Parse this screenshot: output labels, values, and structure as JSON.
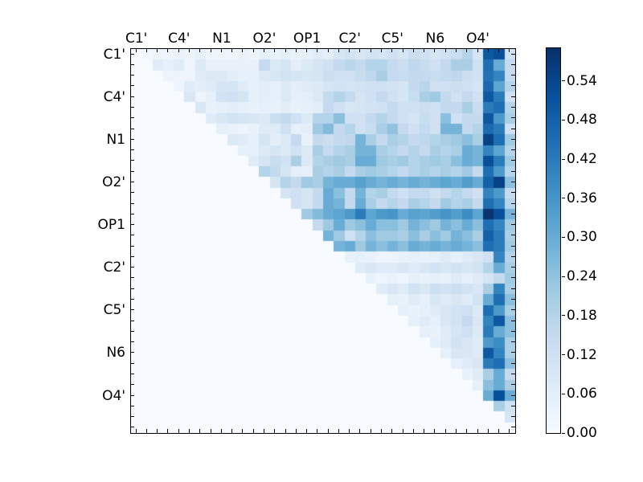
{
  "chart_data": {
    "type": "heatmap",
    "colormap": "Blues",
    "n_rows": 36,
    "n_cols": 36,
    "vmin": 0.0,
    "vmax": 0.59,
    "x_axis": {
      "side": "top",
      "labels": [
        "C1'",
        "C4'",
        "N1",
        "O2'",
        "OP1",
        "C2'",
        "C5'",
        "N6",
        "O4'"
      ],
      "label_cell_indices": [
        0,
        4,
        8,
        12,
        16,
        20,
        24,
        28,
        32
      ]
    },
    "y_axis": {
      "side": "left",
      "labels": [
        "C1'",
        "C4'",
        "N1",
        "O2'",
        "OP1",
        "C2'",
        "C5'",
        "N6",
        "O4'"
      ],
      "label_cell_indices": [
        0,
        4,
        8,
        12,
        16,
        20,
        24,
        28,
        32
      ]
    },
    "colorbar": {
      "side": "right",
      "tick_labels": [
        "0.00",
        "0.06",
        "0.12",
        "0.18",
        "0.24",
        "0.30",
        "0.36",
        "0.42",
        "0.48",
        "0.54"
      ],
      "tick_values": [
        0.0,
        0.06,
        0.12,
        0.18,
        0.24,
        0.3,
        0.36,
        0.42,
        0.48,
        0.54
      ]
    },
    "colormap_stops": [
      [
        0.0,
        "#f7fbff"
      ],
      [
        0.125,
        "#deebf7"
      ],
      [
        0.25,
        "#c6dbef"
      ],
      [
        0.375,
        "#9ecae1"
      ],
      [
        0.5,
        "#6baed6"
      ],
      [
        0.625,
        "#4292c6"
      ],
      [
        0.75,
        "#2171b5"
      ],
      [
        0.875,
        "#08519c"
      ],
      [
        1.0,
        "#08306b"
      ]
    ],
    "values": [
      [
        0,
        0.02,
        0.03,
        0.03,
        0.04,
        0.03,
        0.05,
        0.03,
        0.03,
        0.03,
        0.04,
        0.03,
        0.05,
        0.04,
        0.06,
        0.04,
        0.05,
        0.07,
        0.06,
        0.09,
        0.11,
        0.09,
        0.11,
        0.1,
        0.12,
        0.1,
        0.13,
        0.12,
        0.1,
        0.12,
        0.14,
        0.18,
        0.1,
        0.5,
        0.52,
        0.12
      ],
      [
        0,
        0,
        0.07,
        0.05,
        0.07,
        0.03,
        0.08,
        0.04,
        0.04,
        0.04,
        0.04,
        0.04,
        0.15,
        0.08,
        0.1,
        0.06,
        0.08,
        0.1,
        0.12,
        0.15,
        0.17,
        0.15,
        0.18,
        0.18,
        0.15,
        0.13,
        0.16,
        0.14,
        0.12,
        0.15,
        0.2,
        0.2,
        0.12,
        0.45,
        0.3,
        0.15
      ],
      [
        0,
        0,
        0,
        0.03,
        0.03,
        0.03,
        0.07,
        0.08,
        0.08,
        0.06,
        0.05,
        0.05,
        0.08,
        0.09,
        0.11,
        0.1,
        0.09,
        0.1,
        0.13,
        0.12,
        0.12,
        0.14,
        0.16,
        0.2,
        0.15,
        0.14,
        0.15,
        0.15,
        0.14,
        0.15,
        0.16,
        0.13,
        0.12,
        0.44,
        0.4,
        0.15
      ],
      [
        0,
        0,
        0,
        0,
        0.03,
        0.07,
        0.06,
        0.07,
        0.1,
        0.1,
        0.07,
        0.05,
        0.06,
        0.05,
        0.08,
        0.06,
        0.07,
        0.08,
        0.1,
        0.11,
        0.1,
        0.11,
        0.12,
        0.12,
        0.11,
        0.1,
        0.15,
        0.17,
        0.12,
        0.12,
        0.13,
        0.12,
        0.1,
        0.46,
        0.32,
        0.18
      ],
      [
        0,
        0,
        0,
        0,
        0,
        0.09,
        0.03,
        0.05,
        0.11,
        0.12,
        0.1,
        0.05,
        0.06,
        0.05,
        0.08,
        0.05,
        0.06,
        0.08,
        0.15,
        0.18,
        0.15,
        0.1,
        0.12,
        0.15,
        0.12,
        0.1,
        0.14,
        0.2,
        0.22,
        0.15,
        0.12,
        0.15,
        0.12,
        0.5,
        0.42,
        0.12
      ],
      [
        0,
        0,
        0,
        0,
        0,
        0,
        0.09,
        0.04,
        0.05,
        0.06,
        0.05,
        0.04,
        0.05,
        0.04,
        0.06,
        0.04,
        0.05,
        0.06,
        0.15,
        0.12,
        0.09,
        0.1,
        0.11,
        0.12,
        0.15,
        0.12,
        0.12,
        0.13,
        0.12,
        0.15,
        0.15,
        0.2,
        0.14,
        0.42,
        0.45,
        0.18
      ],
      [
        0,
        0,
        0,
        0,
        0,
        0,
        0,
        0.07,
        0.09,
        0.11,
        0.1,
        0.09,
        0.08,
        0.13,
        0.15,
        0.12,
        0.08,
        0.18,
        0.18,
        0.25,
        0.12,
        0.12,
        0.15,
        0.18,
        0.15,
        0.12,
        0.1,
        0.14,
        0.12,
        0.25,
        0.12,
        0.15,
        0.15,
        0.5,
        0.35,
        0.2
      ],
      [
        0,
        0,
        0,
        0,
        0,
        0,
        0,
        0,
        0.05,
        0.04,
        0.03,
        0.04,
        0.07,
        0.07,
        0.12,
        0.05,
        0.06,
        0.22,
        0.26,
        0.15,
        0.18,
        0.12,
        0.14,
        0.2,
        0.24,
        0.15,
        0.12,
        0.15,
        0.12,
        0.28,
        0.28,
        0.15,
        0.18,
        0.46,
        0.42,
        0.12
      ],
      [
        0,
        0,
        0,
        0,
        0,
        0,
        0,
        0,
        0,
        0.08,
        0.07,
        0.05,
        0.1,
        0.06,
        0.08,
        0.15,
        0.04,
        0.15,
        0.13,
        0.15,
        0.16,
        0.28,
        0.2,
        0.15,
        0.2,
        0.18,
        0.15,
        0.16,
        0.18,
        0.2,
        0.22,
        0.25,
        0.2,
        0.55,
        0.45,
        0.22
      ],
      [
        0,
        0,
        0,
        0,
        0,
        0,
        0,
        0,
        0,
        0,
        0.05,
        0.05,
        0.08,
        0.1,
        0.08,
        0.12,
        0.08,
        0.2,
        0.15,
        0.18,
        0.2,
        0.28,
        0.28,
        0.2,
        0.18,
        0.15,
        0.18,
        0.15,
        0.2,
        0.18,
        0.2,
        0.3,
        0.28,
        0.4,
        0.32,
        0.18
      ],
      [
        0,
        0,
        0,
        0,
        0,
        0,
        0,
        0,
        0,
        0,
        0,
        0.07,
        0.1,
        0.14,
        0.12,
        0.2,
        0.08,
        0.18,
        0.2,
        0.22,
        0.2,
        0.3,
        0.3,
        0.22,
        0.2,
        0.22,
        0.18,
        0.2,
        0.22,
        0.2,
        0.25,
        0.3,
        0.28,
        0.52,
        0.42,
        0.22
      ],
      [
        0,
        0,
        0,
        0,
        0,
        0,
        0,
        0,
        0,
        0,
        0,
        0,
        0.18,
        0.15,
        0.1,
        0.06,
        0.05,
        0.2,
        0.18,
        0.2,
        0.15,
        0.2,
        0.22,
        0.2,
        0.18,
        0.15,
        0.18,
        0.2,
        0.18,
        0.2,
        0.18,
        0.22,
        0.15,
        0.45,
        0.35,
        0.18
      ],
      [
        0,
        0,
        0,
        0,
        0,
        0,
        0,
        0,
        0,
        0,
        0,
        0,
        0,
        0.1,
        0.18,
        0.15,
        0.22,
        0.2,
        0.28,
        0.3,
        0.3,
        0.33,
        0.3,
        0.28,
        0.3,
        0.28,
        0.3,
        0.28,
        0.3,
        0.32,
        0.3,
        0.34,
        0.3,
        0.48,
        0.55,
        0.25
      ],
      [
        0,
        0,
        0,
        0,
        0,
        0,
        0,
        0,
        0,
        0,
        0,
        0,
        0,
        0,
        0.1,
        0.12,
        0.1,
        0.15,
        0.3,
        0.25,
        0.15,
        0.28,
        0.18,
        0.2,
        0.15,
        0.12,
        0.15,
        0.15,
        0.12,
        0.15,
        0.18,
        0.15,
        0.12,
        0.4,
        0.35,
        0.15
      ],
      [
        0,
        0,
        0,
        0,
        0,
        0,
        0,
        0,
        0,
        0,
        0,
        0,
        0,
        0,
        0,
        0.12,
        0.1,
        0.15,
        0.3,
        0.28,
        0.15,
        0.3,
        0.2,
        0.15,
        0.18,
        0.15,
        0.2,
        0.18,
        0.15,
        0.22,
        0.18,
        0.2,
        0.15,
        0.45,
        0.4,
        0.18
      ],
      [
        0,
        0,
        0,
        0,
        0,
        0,
        0,
        0,
        0,
        0,
        0,
        0,
        0,
        0,
        0,
        0,
        0.22,
        0.26,
        0.3,
        0.32,
        0.35,
        0.42,
        0.32,
        0.35,
        0.36,
        0.3,
        0.33,
        0.32,
        0.34,
        0.36,
        0.34,
        0.38,
        0.32,
        0.58,
        0.52,
        0.28
      ],
      [
        0,
        0,
        0,
        0,
        0,
        0,
        0,
        0,
        0,
        0,
        0,
        0,
        0,
        0,
        0,
        0,
        0,
        0.15,
        0.22,
        0.3,
        0.22,
        0.25,
        0.3,
        0.25,
        0.25,
        0.22,
        0.28,
        0.25,
        0.22,
        0.28,
        0.25,
        0.3,
        0.25,
        0.45,
        0.4,
        0.22
      ],
      [
        0,
        0,
        0,
        0,
        0,
        0,
        0,
        0,
        0,
        0,
        0,
        0,
        0,
        0,
        0,
        0,
        0,
        0,
        0.28,
        0.22,
        0.12,
        0.18,
        0.25,
        0.22,
        0.22,
        0.2,
        0.25,
        0.2,
        0.25,
        0.22,
        0.28,
        0.25,
        0.2,
        0.48,
        0.42,
        0.2
      ],
      [
        0,
        0,
        0,
        0,
        0,
        0,
        0,
        0,
        0,
        0,
        0,
        0,
        0,
        0,
        0,
        0,
        0,
        0,
        0,
        0.28,
        0.3,
        0.22,
        0.28,
        0.25,
        0.28,
        0.25,
        0.3,
        0.28,
        0.3,
        0.28,
        0.3,
        0.28,
        0.25,
        0.45,
        0.42,
        0.22
      ],
      [
        0,
        0,
        0,
        0,
        0,
        0,
        0,
        0,
        0,
        0,
        0,
        0,
        0,
        0,
        0,
        0,
        0,
        0,
        0,
        0,
        0.04,
        0.05,
        0.04,
        0.03,
        0.03,
        0.04,
        0.05,
        0.04,
        0.05,
        0.07,
        0.05,
        0.07,
        0.09,
        0.12,
        0.4,
        0.18
      ],
      [
        0,
        0,
        0,
        0,
        0,
        0,
        0,
        0,
        0,
        0,
        0,
        0,
        0,
        0,
        0,
        0,
        0,
        0,
        0,
        0,
        0,
        0.07,
        0.09,
        0.07,
        0.07,
        0.09,
        0.07,
        0.09,
        0.11,
        0.09,
        0.11,
        0.09,
        0.11,
        0.18,
        0.3,
        0.2
      ],
      [
        0,
        0,
        0,
        0,
        0,
        0,
        0,
        0,
        0,
        0,
        0,
        0,
        0,
        0,
        0,
        0,
        0,
        0,
        0,
        0,
        0,
        0,
        0.04,
        0.03,
        0.04,
        0.03,
        0.05,
        0.04,
        0.05,
        0.04,
        0.07,
        0.05,
        0.07,
        0.1,
        0.15,
        0.22
      ],
      [
        0,
        0,
        0,
        0,
        0,
        0,
        0,
        0,
        0,
        0,
        0,
        0,
        0,
        0,
        0,
        0,
        0,
        0,
        0,
        0,
        0,
        0,
        0,
        0.07,
        0.09,
        0.07,
        0.11,
        0.09,
        0.13,
        0.11,
        0.13,
        0.11,
        0.09,
        0.2,
        0.4,
        0.2
      ],
      [
        0,
        0,
        0,
        0,
        0,
        0,
        0,
        0,
        0,
        0,
        0,
        0,
        0,
        0,
        0,
        0,
        0,
        0,
        0,
        0,
        0,
        0,
        0,
        0,
        0.05,
        0.04,
        0.07,
        0.05,
        0.09,
        0.07,
        0.09,
        0.07,
        0.11,
        0.3,
        0.45,
        0.25
      ],
      [
        0,
        0,
        0,
        0,
        0,
        0,
        0,
        0,
        0,
        0,
        0,
        0,
        0,
        0,
        0,
        0,
        0,
        0,
        0,
        0,
        0,
        0,
        0,
        0,
        0,
        0.05,
        0.04,
        0.05,
        0.07,
        0.09,
        0.11,
        0.12,
        0.08,
        0.45,
        0.35,
        0.2
      ],
      [
        0,
        0,
        0,
        0,
        0,
        0,
        0,
        0,
        0,
        0,
        0,
        0,
        0,
        0,
        0,
        0,
        0,
        0,
        0,
        0,
        0,
        0,
        0,
        0,
        0,
        0,
        0.05,
        0.07,
        0.05,
        0.09,
        0.11,
        0.15,
        0.09,
        0.4,
        0.5,
        0.25
      ],
      [
        0,
        0,
        0,
        0,
        0,
        0,
        0,
        0,
        0,
        0,
        0,
        0,
        0,
        0,
        0,
        0,
        0,
        0,
        0,
        0,
        0,
        0,
        0,
        0,
        0,
        0,
        0,
        0.05,
        0.04,
        0.07,
        0.1,
        0.12,
        0.08,
        0.42,
        0.3,
        0.25
      ],
      [
        0,
        0,
        0,
        0,
        0,
        0,
        0,
        0,
        0,
        0,
        0,
        0,
        0,
        0,
        0,
        0,
        0,
        0,
        0,
        0,
        0,
        0,
        0,
        0,
        0,
        0,
        0,
        0,
        0.05,
        0.07,
        0.11,
        0.09,
        0.07,
        0.35,
        0.38,
        0.2
      ],
      [
        0,
        0,
        0,
        0,
        0,
        0,
        0,
        0,
        0,
        0,
        0,
        0,
        0,
        0,
        0,
        0,
        0,
        0,
        0,
        0,
        0,
        0,
        0,
        0,
        0,
        0,
        0,
        0,
        0,
        0.05,
        0.09,
        0.09,
        0.07,
        0.5,
        0.4,
        0.2
      ],
      [
        0,
        0,
        0,
        0,
        0,
        0,
        0,
        0,
        0,
        0,
        0,
        0,
        0,
        0,
        0,
        0,
        0,
        0,
        0,
        0,
        0,
        0,
        0,
        0,
        0,
        0,
        0,
        0,
        0,
        0,
        0.05,
        0.07,
        0.09,
        0.42,
        0.45,
        0.25
      ],
      [
        0,
        0,
        0,
        0,
        0,
        0,
        0,
        0,
        0,
        0,
        0,
        0,
        0,
        0,
        0,
        0,
        0,
        0,
        0,
        0,
        0,
        0,
        0,
        0,
        0,
        0,
        0,
        0,
        0,
        0,
        0,
        0.04,
        0.07,
        0.2,
        0.3,
        0.15
      ],
      [
        0,
        0,
        0,
        0,
        0,
        0,
        0,
        0,
        0,
        0,
        0,
        0,
        0,
        0,
        0,
        0,
        0,
        0,
        0,
        0,
        0,
        0,
        0,
        0,
        0,
        0,
        0,
        0,
        0,
        0,
        0,
        0,
        0.05,
        0.25,
        0.3,
        0.2
      ],
      [
        0,
        0,
        0,
        0,
        0,
        0,
        0,
        0,
        0,
        0,
        0,
        0,
        0,
        0,
        0,
        0,
        0,
        0,
        0,
        0,
        0,
        0,
        0,
        0,
        0,
        0,
        0,
        0,
        0,
        0,
        0,
        0,
        0,
        0.3,
        0.52,
        0.3
      ],
      [
        0,
        0,
        0,
        0,
        0,
        0,
        0,
        0,
        0,
        0,
        0,
        0,
        0,
        0,
        0,
        0,
        0,
        0,
        0,
        0,
        0,
        0,
        0,
        0,
        0,
        0,
        0,
        0,
        0,
        0,
        0,
        0,
        0,
        0,
        0.2,
        0.12
      ],
      [
        0,
        0,
        0,
        0,
        0,
        0,
        0,
        0,
        0,
        0,
        0,
        0,
        0,
        0,
        0,
        0,
        0,
        0,
        0,
        0,
        0,
        0,
        0,
        0,
        0,
        0,
        0,
        0,
        0,
        0,
        0,
        0,
        0,
        0,
        0,
        0.1
      ],
      [
        0,
        0,
        0,
        0,
        0,
        0,
        0,
        0,
        0,
        0,
        0,
        0,
        0,
        0,
        0,
        0,
        0,
        0,
        0,
        0,
        0,
        0,
        0,
        0,
        0,
        0,
        0,
        0,
        0,
        0,
        0,
        0,
        0,
        0,
        0,
        0
      ]
    ]
  },
  "colors": {
    "background": "#ffffff",
    "axis": "#000000",
    "text": "#000000"
  }
}
